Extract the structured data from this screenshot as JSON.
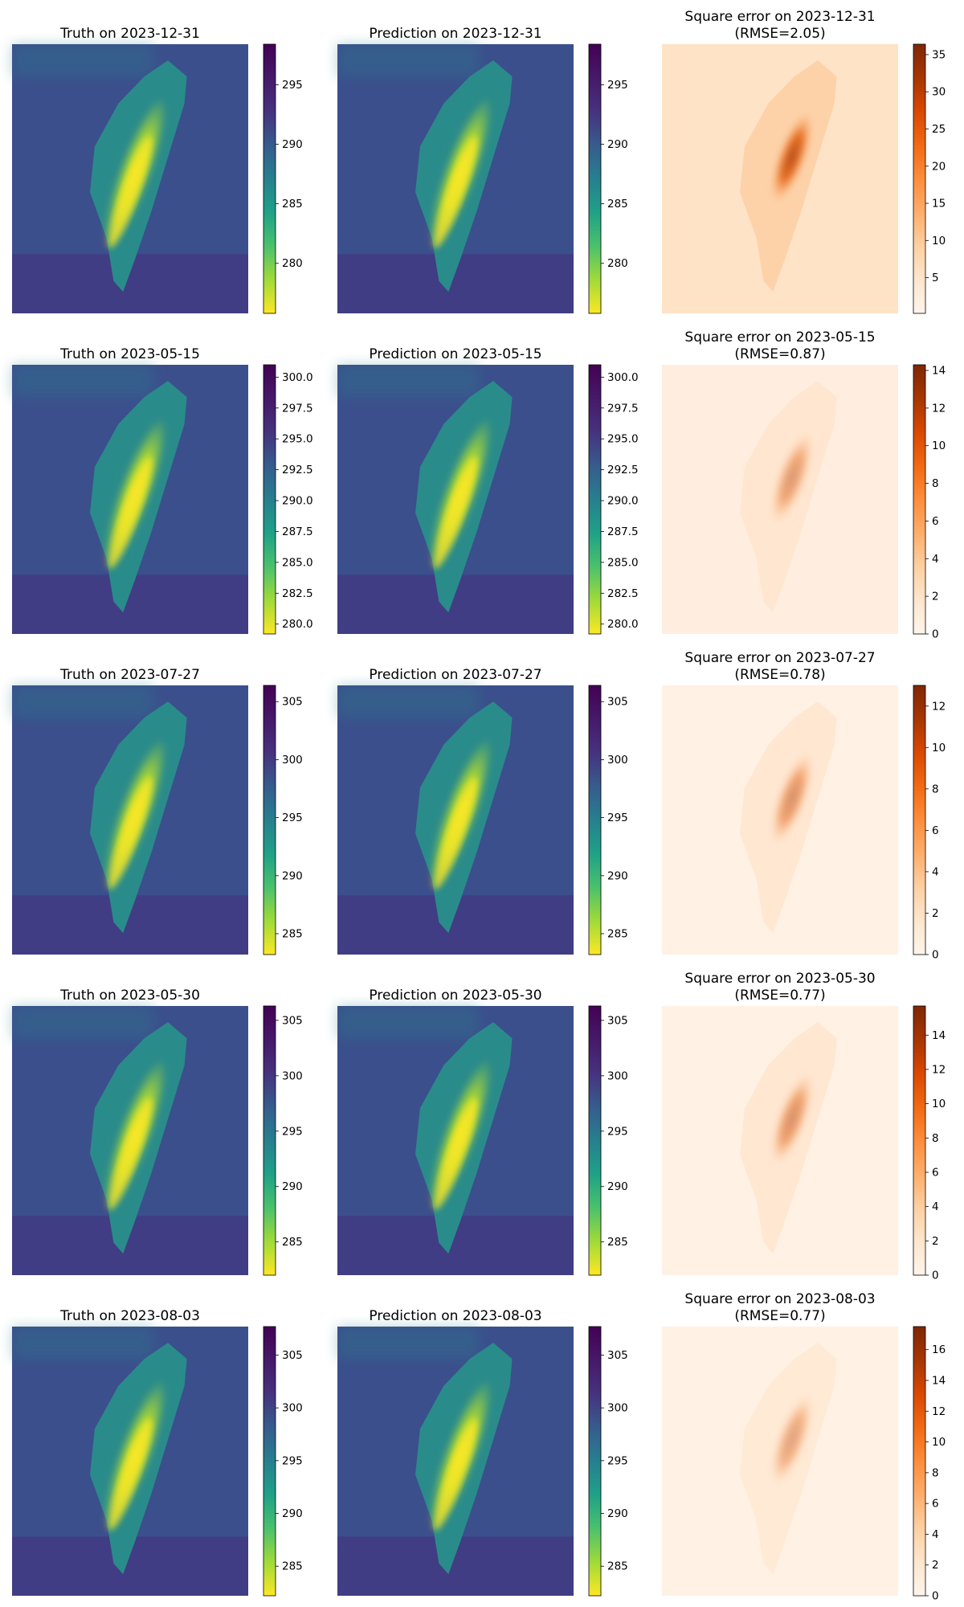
{
  "chart_data": [
    {
      "type": "heatmap",
      "rows": [
        {
          "truth": {
            "title": "Truth on 2023-12-31",
            "colormap": "viridis_r",
            "ticks": [
              280,
              285,
              290,
              295
            ],
            "range": [
              275.8,
              298.4
            ]
          },
          "prediction": {
            "title": "Prediction on 2023-12-31",
            "colormap": "viridis_r",
            "ticks": [
              280,
              285,
              290,
              295
            ],
            "range": [
              275.8,
              298.4
            ]
          },
          "error": {
            "title_lines": [
              "Square error on 2023-12-31",
              "(RMSE=2.05)"
            ],
            "colormap": "oranges",
            "ticks": [
              5,
              10,
              15,
              20,
              25,
              30,
              35
            ],
            "range": [
              0.2,
              36.4
            ],
            "intensity": 0.9,
            "island": 0.65
          }
        },
        {
          "truth": {
            "title": "Truth on 2023-05-15",
            "colormap": "viridis_r",
            "ticks": [
              "280.0",
              "282.5",
              "285.0",
              "287.5",
              "290.0",
              "292.5",
              "295.0",
              "297.5",
              "300.0"
            ],
            "range": [
              279.2,
              301.0
            ]
          },
          "prediction": {
            "title": "Prediction on 2023-05-15",
            "colormap": "viridis_r",
            "ticks": [
              "280.0",
              "282.5",
              "285.0",
              "287.5",
              "290.0",
              "292.5",
              "295.0",
              "297.5",
              "300.0"
            ],
            "range": [
              279.2,
              301.0
            ]
          },
          "error": {
            "title_lines": [
              "Square error on 2023-05-15",
              "(RMSE=0.87)"
            ],
            "colormap": "oranges",
            "ticks": [
              0,
              2,
              4,
              6,
              8,
              10,
              12,
              14
            ],
            "range": [
              0,
              14.3
            ],
            "intensity": 0.3,
            "island": 0.25
          }
        },
        {
          "truth": {
            "title": "Truth on 2023-07-27",
            "colormap": "viridis_r",
            "ticks": [
              285,
              290,
              295,
              300,
              305
            ],
            "range": [
              283.2,
              306.4
            ]
          },
          "prediction": {
            "title": "Prediction on 2023-07-27",
            "colormap": "viridis_r",
            "ticks": [
              285,
              290,
              295,
              300,
              305
            ],
            "range": [
              283.2,
              306.4
            ]
          },
          "error": {
            "title_lines": [
              "Square error on 2023-07-27",
              "(RMSE=0.78)"
            ],
            "colormap": "oranges",
            "ticks": [
              0,
              2,
              4,
              6,
              8,
              10,
              12
            ],
            "range": [
              0,
              13.0
            ],
            "intensity": 0.15,
            "island": 0.3
          }
        },
        {
          "truth": {
            "title": "Truth on 2023-05-30",
            "colormap": "viridis_r",
            "ticks": [
              285,
              290,
              295,
              300,
              305
            ],
            "range": [
              282.0,
              306.3
            ]
          },
          "prediction": {
            "title": "Prediction on 2023-05-30",
            "colormap": "viridis_r",
            "ticks": [
              285,
              290,
              295,
              300,
              305
            ],
            "range": [
              282.0,
              306.3
            ]
          },
          "error": {
            "title_lines": [
              "Square error on 2023-05-30",
              "(RMSE=0.77)"
            ],
            "colormap": "oranges",
            "ticks": [
              0,
              2,
              4,
              6,
              8,
              10,
              12,
              14
            ],
            "range": [
              0,
              15.7
            ],
            "intensity": 0.15,
            "island": 0.3
          }
        },
        {
          "truth": {
            "title": "Truth on 2023-08-03",
            "colormap": "viridis_r",
            "ticks": [
              285,
              290,
              295,
              300,
              305
            ],
            "range": [
              282.2,
              307.7
            ]
          },
          "prediction": {
            "title": "Prediction on 2023-08-03",
            "colormap": "viridis_r",
            "ticks": [
              285,
              290,
              295,
              300,
              305
            ],
            "range": [
              282.2,
              307.7
            ]
          },
          "error": {
            "title_lines": [
              "Square error on 2023-08-03",
              "(RMSE=0.77)"
            ],
            "colormap": "oranges",
            "ticks": [
              0,
              2,
              4,
              6,
              8,
              10,
              12,
              14,
              16
            ],
            "range": [
              0,
              17.5
            ],
            "intensity": 0.2,
            "island": 0.2
          }
        }
      ]
    }
  ]
}
